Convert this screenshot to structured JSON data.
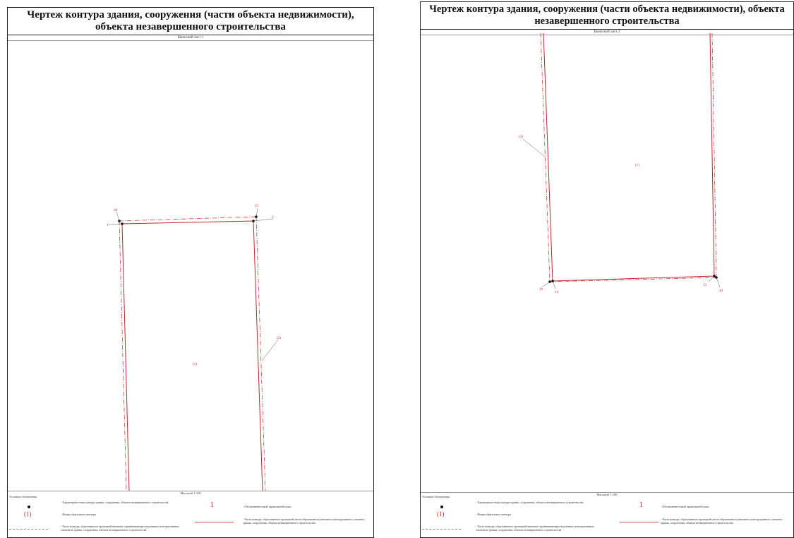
{
  "sheets": [
    {
      "title": "Чертеж контура здания, сооружения (части объекта недвижимости), объекта незавершенного строительства",
      "subtitle": "Выносной лист 1",
      "scale": "Масштаб 1:100",
      "labels": {
        "p28": "28",
        "p25": "25",
        "p1": "1",
        "p2": "2",
        "contour": "(1)",
        "part": "(2)"
      }
    },
    {
      "title": "Чертеж контура здания, сооружения (части объекта недвижимости), объекта незавершенного строительства",
      "subtitle": "Выносной лист 2",
      "scale": "Масштаб 1:100",
      "labels": {
        "part": "(3)",
        "contour": "(1)",
        "p28": "28",
        "p14": "14",
        "p13": "13",
        "p40": "40"
      }
    }
  ],
  "legend": {
    "title": "Условные обозначения",
    "point_text": "- Характерная точка контура здания, сооружения, объекта незавершенного строительства",
    "contour_symbol": "(1)",
    "contour_text": "- Номер образуемого контура",
    "dashed_text": "- Часть контура, образованного проекцией внешних ограничивающих надземных конструктивных элементов здания, сооружения, объекта незавершенного строительства",
    "new_point_symbol": "1",
    "new_point_text": "- Обозначение новой характерной точки",
    "solid_text": "- Часть контура, образованного проекцией места образованного внешнего конструктивного элемента здания, сооружения, объекта незавершенного строительства"
  },
  "colors": {
    "contour": "#c0282d",
    "dashed": "#c0282d",
    "point": "#111111",
    "border": "#222222"
  }
}
